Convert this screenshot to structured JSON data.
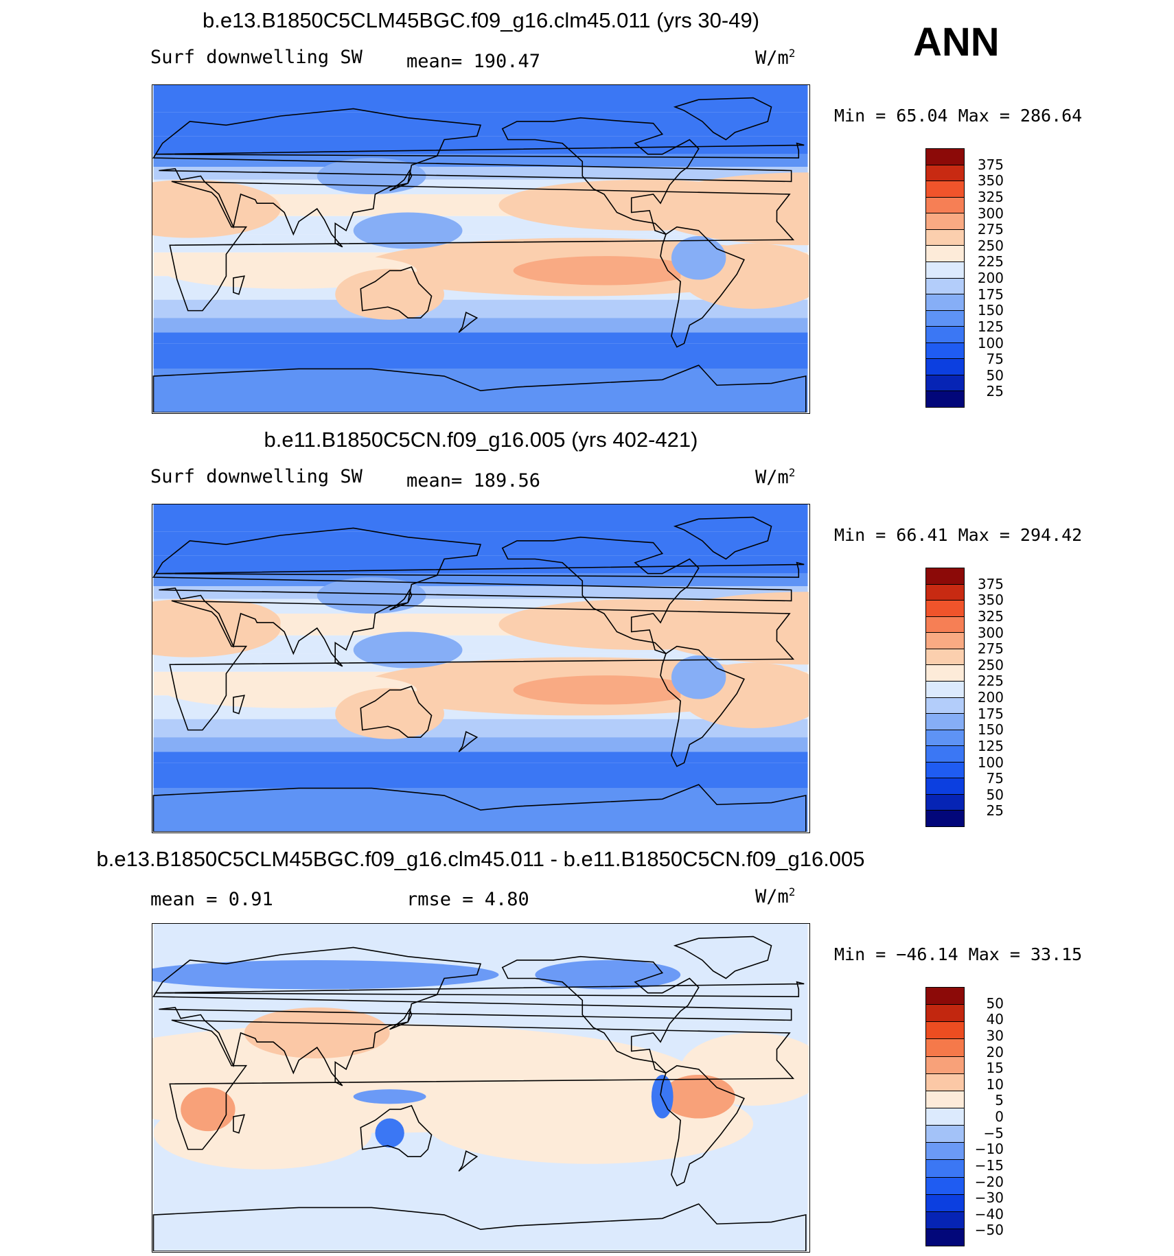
{
  "season": "ANN",
  "colors": {
    "abs_scale": [
      "#02077a",
      "#0624b5",
      "#0c3fe0",
      "#1f5cf2",
      "#3b77f4",
      "#5e93f5",
      "#86aef6",
      "#b3cdfa",
      "#dceafd",
      "#fdebd9",
      "#fbcfae",
      "#f9aa83",
      "#f67f55",
      "#f0542b",
      "#c82a12",
      "#8c0a08"
    ],
    "diff_scale": [
      "#02077a",
      "#0624b5",
      "#0c3fe0",
      "#1f5cf2",
      "#3b77f4",
      "#6b9af6",
      "#a3c2f8",
      "#dceafd",
      "#fdebd9",
      "#fbc8a6",
      "#f8a179",
      "#f5794a",
      "#ec4d21",
      "#c2270f",
      "#8c0a08"
    ],
    "land": "#000000"
  },
  "panels": [
    {
      "title": "b.e13.B1850C5CLM45BGC.f09_g16.clm45.011 (yrs 30-49)",
      "left_label": "Surf downwelling SW",
      "center_label": "mean=  190.47",
      "units": "W/m",
      "units_sup": "2",
      "minmax": "Min =   65.04  Max  =  286.64",
      "map_type": "abs",
      "ticks": [
        "375",
        "350",
        "325",
        "300",
        "275",
        "250",
        "225",
        "200",
        "175",
        "150",
        "125",
        "100",
        "75",
        "50",
        "25"
      ]
    },
    {
      "title": "b.e11.B1850C5CN.f09_g16.005 (yrs 402-421)",
      "left_label": "Surf downwelling SW",
      "center_label": "mean=  189.56",
      "units": "W/m",
      "units_sup": "2",
      "minmax": "Min =   66.41  Max  =  294.42",
      "map_type": "abs",
      "ticks": [
        "375",
        "350",
        "325",
        "300",
        "275",
        "250",
        "225",
        "200",
        "175",
        "150",
        "125",
        "100",
        "75",
        "50",
        "25"
      ]
    },
    {
      "title": "b.e13.B1850C5CLM45BGC.f09_g16.clm45.011 - b.e11.B1850C5CN.f09_g16.005",
      "left_label": "mean  =     0.91",
      "center_label": "rmse  =     4.80",
      "units": "W/m",
      "units_sup": "2",
      "minmax": "Min  = −46.14  Max  =    33.15",
      "map_type": "diff",
      "ticks": [
        "50",
        "40",
        "30",
        "20",
        "15",
        "10",
        "5",
        "0",
        "−5",
        "−10",
        "−15",
        "−20",
        "−30",
        "−40",
        "−50"
      ]
    }
  ]
}
